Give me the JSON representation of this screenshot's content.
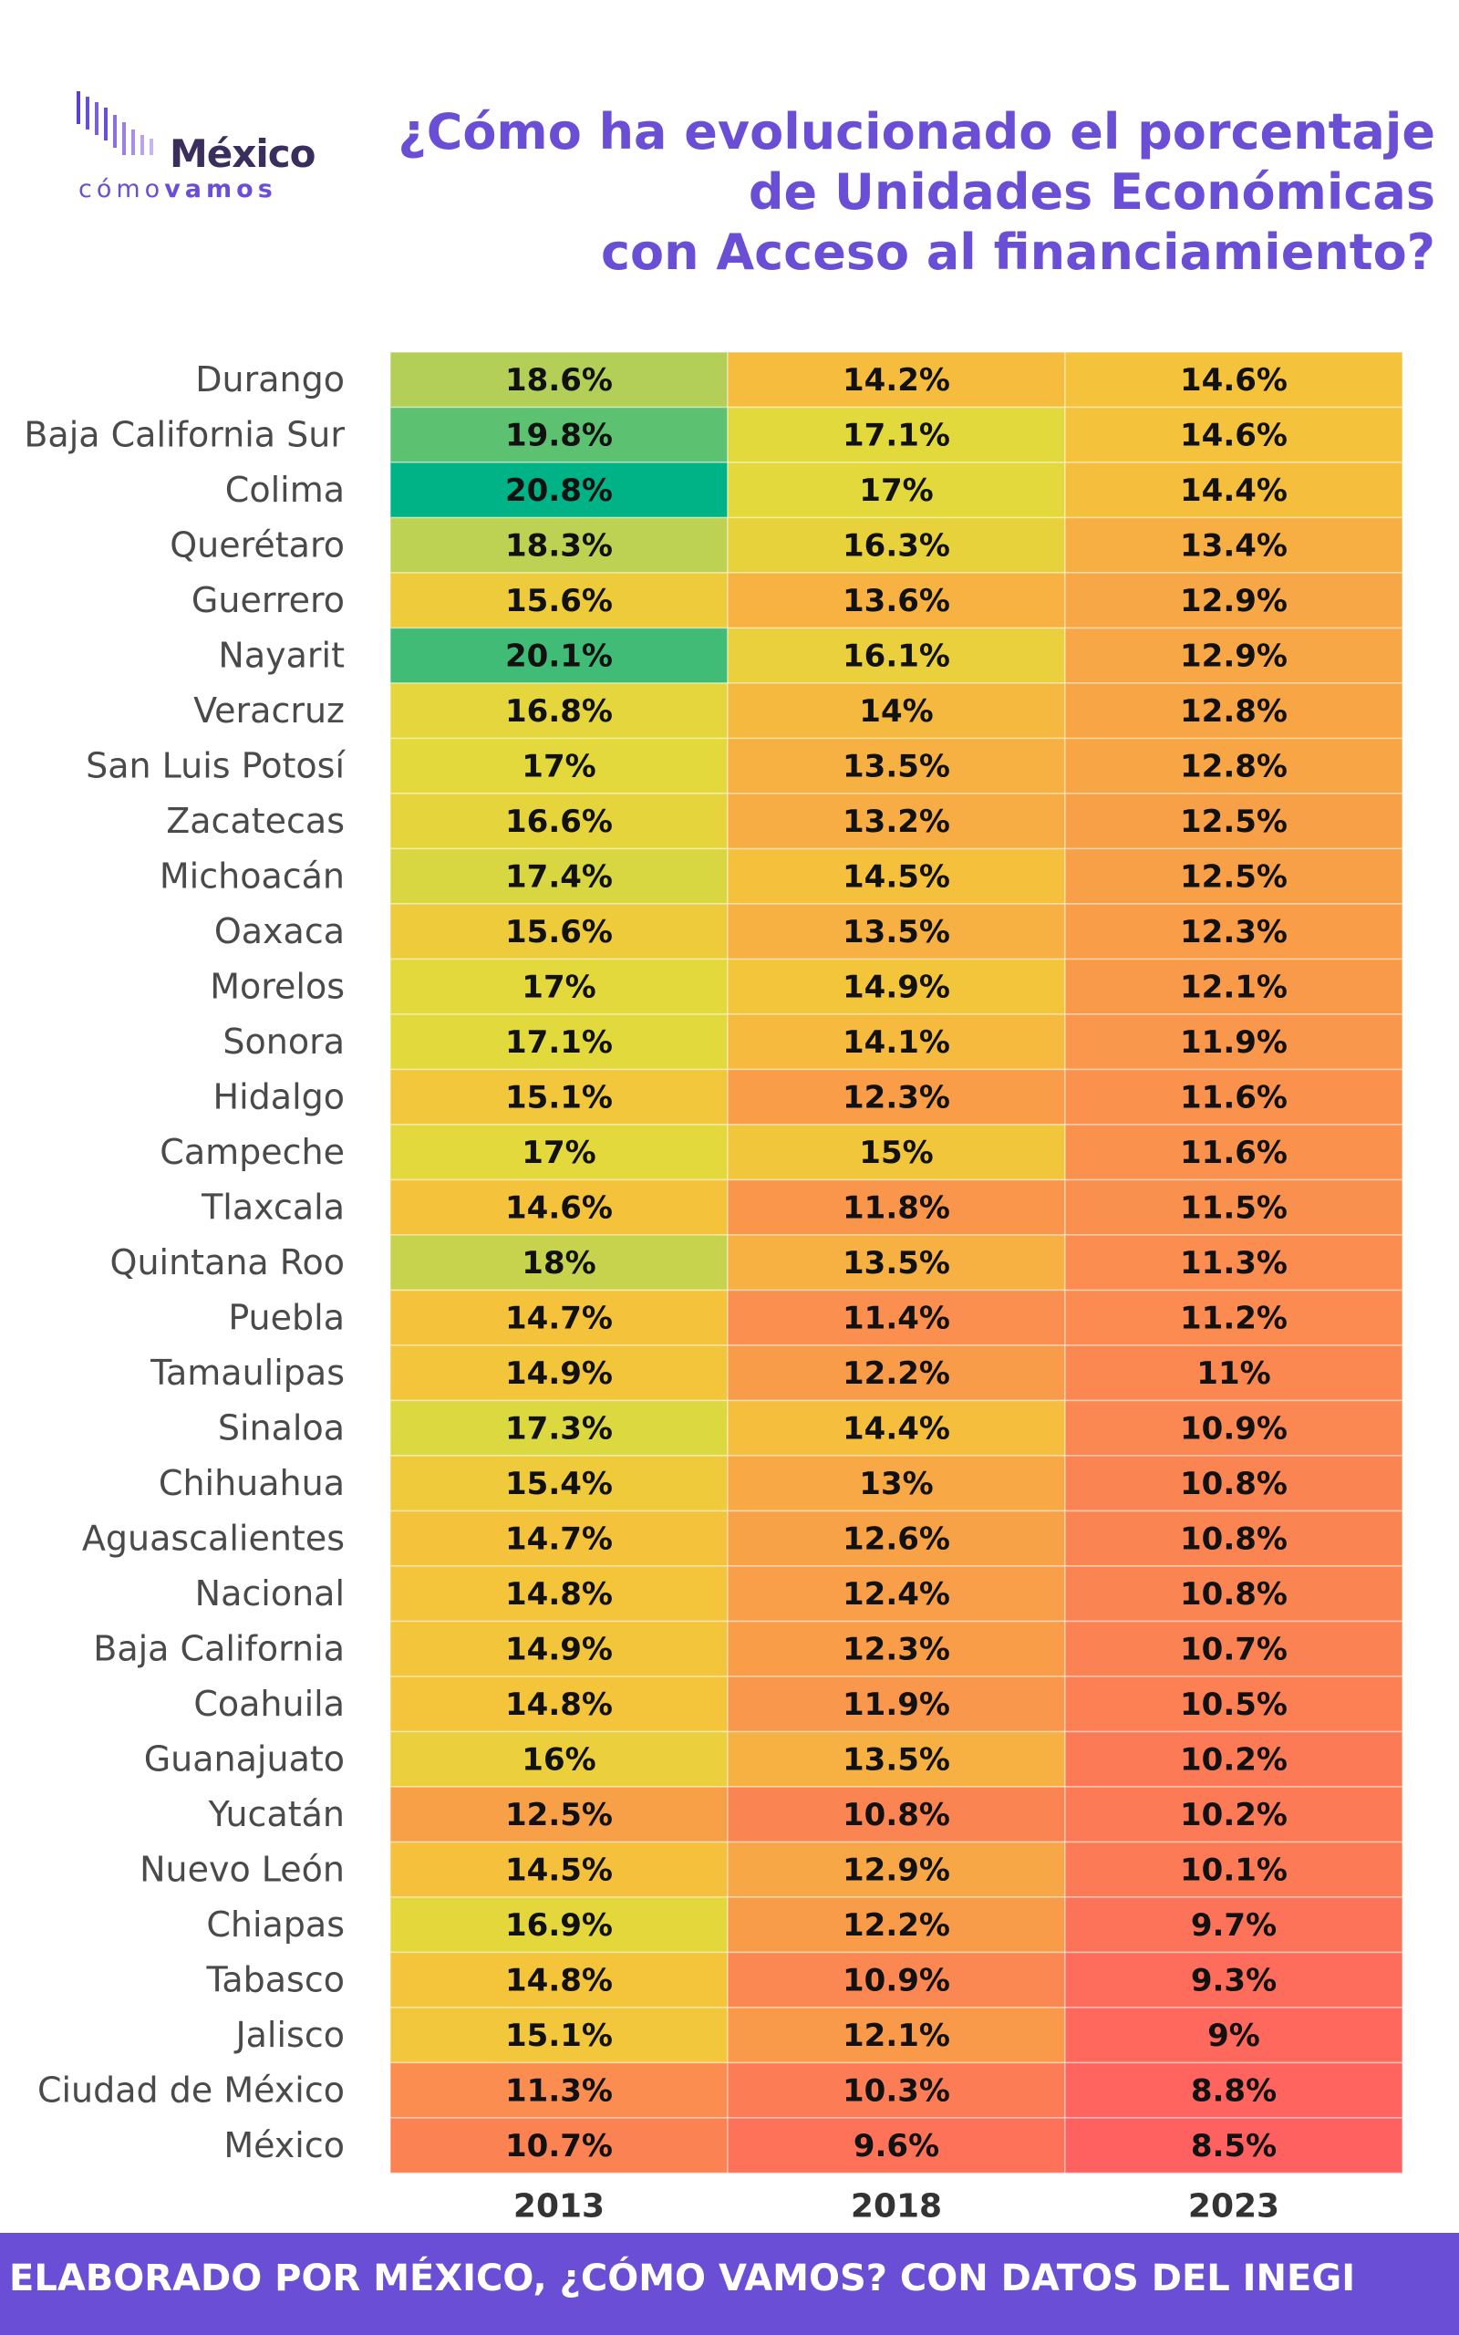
{
  "logo": {
    "brand": "México",
    "tagline_a": "cómo",
    "tagline_b": "vamos"
  },
  "title_lines": [
    "¿Cómo ha evolucionado el porcentaje",
    "de Unidades Económicas",
    "con Acceso al financiamiento?"
  ],
  "footer": "ELABORADO POR MÉXICO, ¿CÓMO VAMOS? CON DATOS DEL INEGI",
  "colors": {
    "accent": "#6a4fd6",
    "scale_low": "#ff6060",
    "scale_mid": "#f5c33b",
    "scale_high": "#00b386"
  },
  "chart_data": {
    "type": "heatmap",
    "title": "¿Cómo ha evolucionado el porcentaje de Unidades Económicas con Acceso al financiamiento?",
    "columns": [
      "2013",
      "2018",
      "2023"
    ],
    "unit": "%",
    "color_domain": [
      8.5,
      20.8
    ],
    "rows": [
      {
        "label": "Durango",
        "values": [
          18.6,
          14.2,
          14.6
        ]
      },
      {
        "label": "Baja California Sur",
        "values": [
          19.8,
          17.1,
          14.6
        ]
      },
      {
        "label": "Colima",
        "values": [
          20.8,
          17,
          14.4
        ]
      },
      {
        "label": "Querétaro",
        "values": [
          18.3,
          16.3,
          13.4
        ]
      },
      {
        "label": "Guerrero",
        "values": [
          15.6,
          13.6,
          12.9
        ]
      },
      {
        "label": "Nayarit",
        "values": [
          20.1,
          16.1,
          12.9
        ]
      },
      {
        "label": "Veracruz",
        "values": [
          16.8,
          14,
          12.8
        ]
      },
      {
        "label": "San Luis Potosí",
        "values": [
          17,
          13.5,
          12.8
        ]
      },
      {
        "label": "Zacatecas",
        "values": [
          16.6,
          13.2,
          12.5
        ]
      },
      {
        "label": "Michoacán",
        "values": [
          17.4,
          14.5,
          12.5
        ]
      },
      {
        "label": "Oaxaca",
        "values": [
          15.6,
          13.5,
          12.3
        ]
      },
      {
        "label": "Morelos",
        "values": [
          17,
          14.9,
          12.1
        ]
      },
      {
        "label": "Sonora",
        "values": [
          17.1,
          14.1,
          11.9
        ]
      },
      {
        "label": "Hidalgo",
        "values": [
          15.1,
          12.3,
          11.6
        ]
      },
      {
        "label": "Campeche",
        "values": [
          17,
          15,
          11.6
        ]
      },
      {
        "label": "Tlaxcala",
        "values": [
          14.6,
          11.8,
          11.5
        ]
      },
      {
        "label": "Quintana Roo",
        "values": [
          18,
          13.5,
          11.3
        ]
      },
      {
        "label": "Puebla",
        "values": [
          14.7,
          11.4,
          11.2
        ]
      },
      {
        "label": "Tamaulipas",
        "values": [
          14.9,
          12.2,
          11
        ]
      },
      {
        "label": "Sinaloa",
        "values": [
          17.3,
          14.4,
          10.9
        ]
      },
      {
        "label": "Chihuahua",
        "values": [
          15.4,
          13,
          10.8
        ]
      },
      {
        "label": "Aguascalientes",
        "values": [
          14.7,
          12.6,
          10.8
        ]
      },
      {
        "label": "Nacional",
        "values": [
          14.8,
          12.4,
          10.8
        ]
      },
      {
        "label": "Baja California",
        "values": [
          14.9,
          12.3,
          10.7
        ]
      },
      {
        "label": "Coahuila",
        "values": [
          14.8,
          11.9,
          10.5
        ]
      },
      {
        "label": "Guanajuato",
        "values": [
          16,
          13.5,
          10.2
        ]
      },
      {
        "label": "Yucatán",
        "values": [
          12.5,
          10.8,
          10.2
        ]
      },
      {
        "label": "Nuevo León",
        "values": [
          14.5,
          12.9,
          10.1
        ]
      },
      {
        "label": "Chiapas",
        "values": [
          16.9,
          12.2,
          9.7
        ]
      },
      {
        "label": "Tabasco",
        "values": [
          14.8,
          10.9,
          9.3
        ]
      },
      {
        "label": "Jalisco",
        "values": [
          15.1,
          12.1,
          9
        ]
      },
      {
        "label": "Ciudad de México",
        "values": [
          11.3,
          10.3,
          8.8
        ]
      },
      {
        "label": "México",
        "values": [
          10.7,
          9.6,
          8.5
        ]
      }
    ]
  }
}
